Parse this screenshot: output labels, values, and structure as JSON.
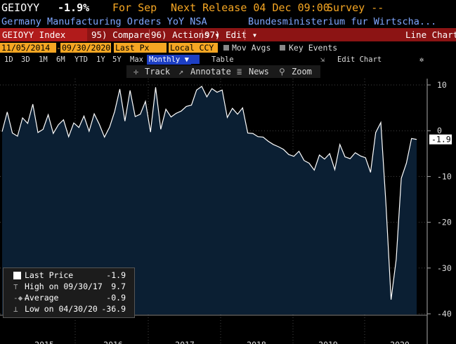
{
  "header": {
    "ticker": "GEIOYY",
    "last_value": "-1.9%",
    "for_text": "For Sep",
    "next_release": "Next Release 04 Dec 09:00",
    "survey": "Survey --",
    "series_name": "Germany Manufacturing Orders YoY NSA",
    "source": "Bundesministerium fur Wirtscha..."
  },
  "toolbar": {
    "index": "GEIOYY Index",
    "compare": "95) Compare",
    "actions": "96) Actions ▾",
    "edit": "97) Edit ▾",
    "chart_type": "Line Chart"
  },
  "options": {
    "start_date": "11/05/2014",
    "end_date": "09/30/2020",
    "price": "Last Px",
    "currency": "Local CCY",
    "mov_avgs": "Mov Avgs",
    "key_events": "Key Events"
  },
  "periods": {
    "items": [
      "1D",
      "3D",
      "1M",
      "6M",
      "YTD",
      "1Y",
      "5Y",
      "Max"
    ],
    "frequency": "Monthly",
    "table": "Table",
    "edit_chart": "Edit Chart"
  },
  "tools": {
    "track": "Track",
    "annotate": "Annotate",
    "news": "News",
    "zoom": "Zoom"
  },
  "legend": {
    "last_price_label": "Last Price",
    "last_price_value": "-1.9",
    "high_label": "High on 09/30/17",
    "high_value": "9.7",
    "average_label": "Average",
    "average_value": "-0.9",
    "low_label": "Low on 04/30/20",
    "low_value": "-36.9"
  },
  "colors": {
    "background": "#000000",
    "area_fill": "#0b1f33",
    "line": "#ffffff",
    "accent_orange": "#f5a623",
    "toolbar_red": "#8c1414",
    "series_blue": "#7fa7ff"
  },
  "chart_data": {
    "type": "area",
    "title": "",
    "xlabel": "",
    "ylabel": "",
    "ylim": [
      -41,
      14
    ],
    "yticks": [
      10,
      0,
      -10,
      -20,
      -30,
      -40
    ],
    "year_labels": [
      "2015",
      "2016",
      "2017",
      "2018",
      "2019",
      "2020"
    ],
    "last_label": "-1.9",
    "series": [
      {
        "values": [
          -0.2,
          4.1,
          -0.5,
          -1.2,
          2.8,
          1.6,
          5.8,
          -0.4,
          0.3,
          3.5,
          -0.6,
          1.3,
          2.4,
          -1.3,
          1.7,
          0.7,
          3.2,
          -0.1,
          3.7,
          1.4,
          -1.4,
          0.8,
          4.2,
          9.1,
          2.1,
          8.8,
          3.1,
          3.6,
          6.4,
          -0.3,
          9.5,
          0.3,
          4.7,
          3.0,
          3.8,
          4.3,
          5.3,
          5.6,
          8.9,
          9.7,
          7.4,
          9.2,
          8.4,
          8.9,
          2.9,
          4.9,
          3.6,
          5.0,
          -0.5,
          -0.6,
          -1.3,
          -1.4,
          -2.3,
          -3.0,
          -3.5,
          -4.1,
          -5.2,
          -5.6,
          -4.5,
          -6.5,
          -7.1,
          -8.6,
          -5.3,
          -6.2,
          -5.0,
          -8.5,
          -3.0,
          -5.7,
          -6.1,
          -4.8,
          -5.5,
          -5.9,
          -9.1,
          -0.4,
          1.8,
          -16.0,
          -36.9,
          -28.1,
          -10.4,
          -7.1,
          -1.7,
          -1.9
        ]
      }
    ]
  }
}
